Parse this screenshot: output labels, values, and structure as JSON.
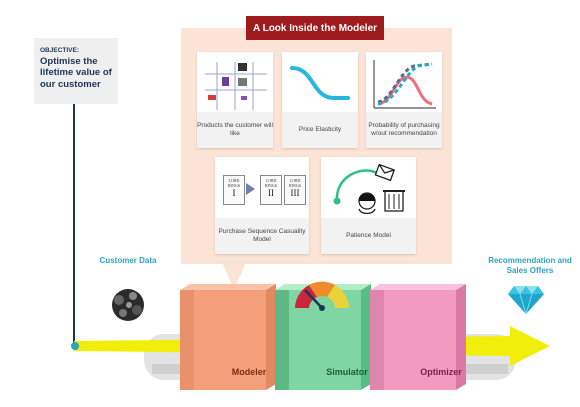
{
  "objective": {
    "label": "OBJECTIVE:",
    "text": "Optimise the lifetime value of our customer"
  },
  "panel": {
    "title": "A Look Inside the Modeler",
    "cards": [
      {
        "caption": "Products the customer will like"
      },
      {
        "caption": "Price Elasticity"
      },
      {
        "caption": "Probability of purchasing w/out recommendation"
      },
      {
        "caption": "Purchase Sequence Casuality Model"
      },
      {
        "caption": "Patience Model"
      }
    ],
    "book_labels": [
      {
        "top": "LORD",
        "mid": "RINGS",
        "numeral": "I"
      },
      {
        "top": "LORD",
        "mid": "RINGS",
        "numeral": "II"
      },
      {
        "top": "LORD",
        "mid": "RINGS",
        "numeral": "III"
      }
    ]
  },
  "customer_data": {
    "label": "Customer Data"
  },
  "recommendation": {
    "label": "Recommendation and Sales Offers"
  },
  "stages": [
    {
      "label": "Modeler",
      "color": "#f4a07a"
    },
    {
      "label": "Simulator",
      "color": "#7fd6a2"
    },
    {
      "label": "Optimizer",
      "color": "#f29ac0"
    }
  ],
  "colors": {
    "arrow": "#f2ee0c",
    "panel": "#fbe3d6",
    "title_bar": "#9e1b1e",
    "teal": "#2fa5c0",
    "navy": "#1d3557"
  },
  "icons": [
    "gauge-icon",
    "diamond-icon",
    "data-blob-icon",
    "envelope-icon",
    "trash-icon",
    "person-icon"
  ]
}
